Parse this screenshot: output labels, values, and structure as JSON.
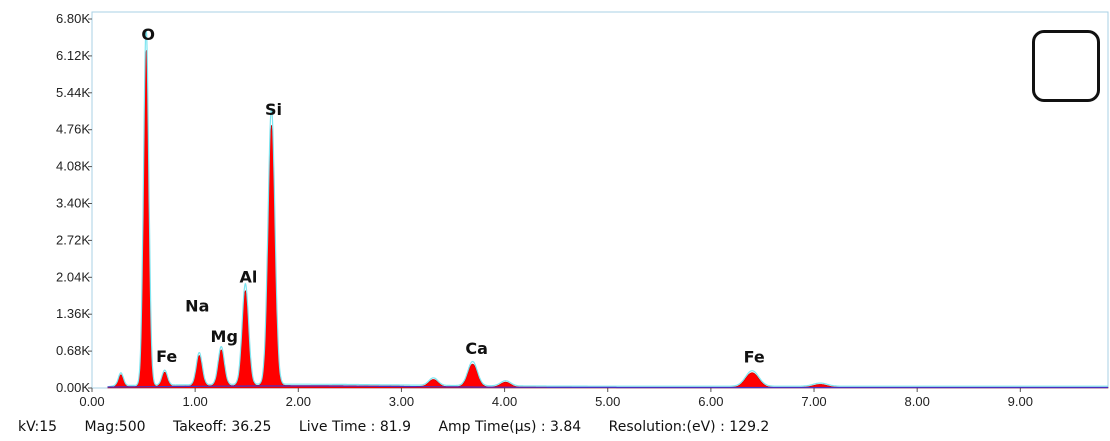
{
  "chart_data": {
    "type": "area",
    "x_ticks": [
      "0.00",
      "1.00",
      "2.00",
      "3.00",
      "4.00",
      "5.00",
      "6.00",
      "7.00",
      "8.00",
      "9.00"
    ],
    "y_ticks": [
      "0.00K",
      "0.68K",
      "1.36K",
      "2.04K",
      "2.72K",
      "3.40K",
      "4.08K",
      "4.76K",
      "5.44K",
      "6.12K",
      "6.80K"
    ],
    "xlim": [
      0,
      9.85
    ],
    "ylim": [
      0,
      6800
    ],
    "grid": false,
    "colors": {
      "spectrum_fill": "#ff0000",
      "spectrum_edge": "#c00000",
      "baseline": "#4a2fc0",
      "envelope": "#7fe5f0"
    },
    "peaks": [
      {
        "element": "O",
        "energy": 0.525,
        "counts": 6200
      },
      {
        "element": "Fe",
        "energy": 0.705,
        "counts": 260
      },
      {
        "element": "Na",
        "energy": 1.04,
        "counts": 560
      },
      {
        "element": "Mg",
        "energy": 1.253,
        "counts": 660
      },
      {
        "element": "Al",
        "energy": 1.487,
        "counts": 1750
      },
      {
        "element": "Si",
        "energy": 1.74,
        "counts": 4800
      },
      {
        "element": "Ca",
        "energy": 3.69,
        "counts": 420
      },
      {
        "element": "Fe",
        "energy": 6.4,
        "counts": 270
      }
    ],
    "minor_peaks": [
      {
        "energy": 0.28,
        "counts": 220
      },
      {
        "energy": 3.31,
        "counts": 130
      },
      {
        "energy": 4.01,
        "counts": 90
      },
      {
        "energy": 7.06,
        "counts": 55
      }
    ]
  },
  "footer": {
    "kv": "kV:15",
    "mag": "Mag:500",
    "takeoff": "Takeoff: 36.25",
    "live_time": "Live Time : 81.9",
    "amp_time": "Amp Time(µs) : 3.84",
    "resolution": "Resolution:(eV) : 129.2"
  }
}
